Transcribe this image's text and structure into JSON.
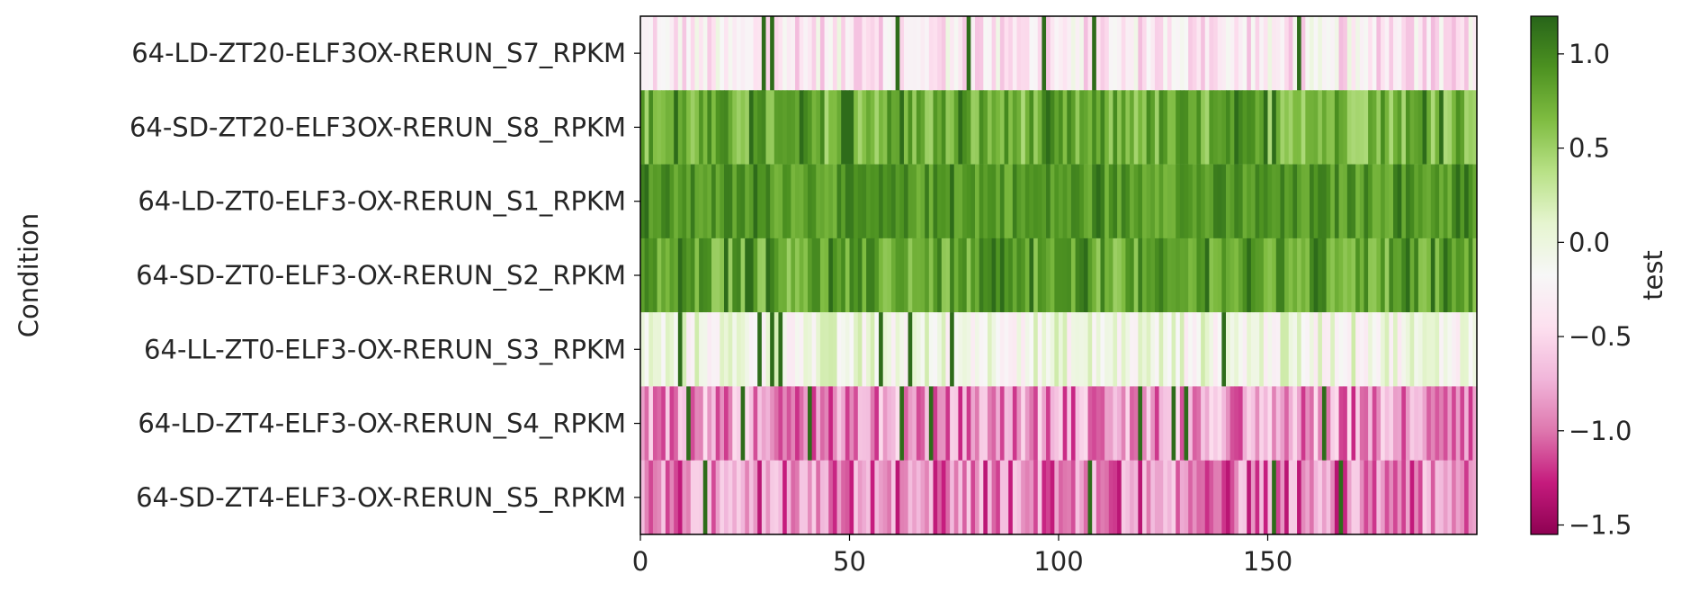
{
  "chart_data": {
    "type": "heatmap",
    "ylabel": "Condition",
    "xlabel": "",
    "rows": [
      "64-LD-ZT20-ELF3OX-RERUN_S7_RPKM",
      "64-SD-ZT20-ELF3OX-RERUN_S8_RPKM",
      "64-LD-ZT0-ELF3-OX-RERUN_S1_RPKM",
      "64-SD-ZT0-ELF3-OX-RERUN_S2_RPKM",
      "64-LL-ZT0-ELF3-OX-RERUN_S3_RPKM",
      "64-LD-ZT4-ELF3-OX-RERUN_S4_RPKM",
      "64-SD-ZT4-ELF3-OX-RERUN_S5_RPKM"
    ],
    "n_columns": 200,
    "xlim": [
      0,
      200
    ],
    "xticks": [
      0,
      50,
      100,
      150
    ],
    "xtick_labels": [
      "0",
      "50",
      "100",
      "150"
    ],
    "row_value_summary": [
      {
        "row": "64-LD-ZT20-ELF3OX-RERUN_S7_RPKM",
        "mean": -0.35,
        "spread": 0.35
      },
      {
        "row": "64-SD-ZT20-ELF3OX-RERUN_S8_RPKM",
        "mean": 0.72,
        "spread": 0.3
      },
      {
        "row": "64-LD-ZT0-ELF3-OX-RERUN_S1_RPKM",
        "mean": 0.88,
        "spread": 0.2
      },
      {
        "row": "64-SD-ZT0-ELF3-OX-RERUN_S2_RPKM",
        "mean": 0.78,
        "spread": 0.28
      },
      {
        "row": "64-LL-ZT0-ELF3-OX-RERUN_S3_RPKM",
        "mean": -0.05,
        "spread": 0.3
      },
      {
        "row": "64-LD-ZT4-ELF3-OX-RERUN_S4_RPKM",
        "mean": -0.85,
        "spread": 0.4
      },
      {
        "row": "64-SD-ZT4-ELF3-OX-RERUN_S5_RPKM",
        "mean": -0.95,
        "spread": 0.4
      }
    ],
    "colorbar": {
      "label": "test",
      "colormap": "PiYG",
      "vmin": -1.55,
      "vmax": 1.2,
      "ticks": [
        -1.5,
        -1.0,
        -0.5,
        0.0,
        0.5,
        1.0
      ],
      "tick_labels": [
        "−1.5",
        "−1.0",
        "−0.5",
        "0.0",
        "0.5",
        "1.0"
      ]
    },
    "colors": {
      "low": "#8e0152",
      "mid": "#f7f7f7",
      "high": "#276419"
    }
  }
}
